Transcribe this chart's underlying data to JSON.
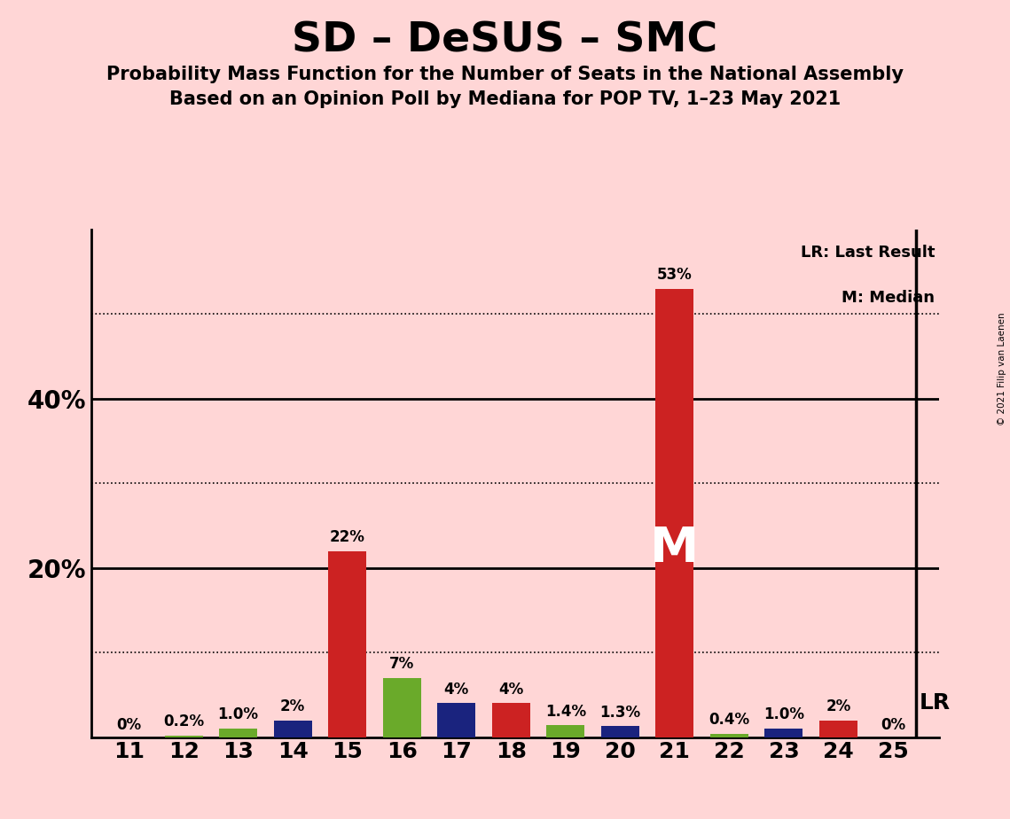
{
  "title": "SD – DeSUS – SMC",
  "subtitle1": "Probability Mass Function for the Number of Seats in the National Assembly",
  "subtitle2": "Based on an Opinion Poll by Mediana for POP TV, 1–23 May 2021",
  "copyright": "© 2021 Filip van Laenen",
  "seats": [
    11,
    12,
    13,
    14,
    15,
    16,
    17,
    18,
    19,
    20,
    21,
    22,
    23,
    24,
    25
  ],
  "values": [
    0.0,
    0.2,
    1.0,
    2.0,
    22.0,
    7.0,
    4.0,
    4.0,
    1.4,
    1.3,
    53.0,
    0.4,
    1.0,
    2.0,
    0.0
  ],
  "labels": [
    "0%",
    "0.2%",
    "1.0%",
    "2%",
    "22%",
    "7%",
    "4%",
    "4%",
    "1.4%",
    "1.3%",
    "53%",
    "0.4%",
    "1.0%",
    "2%",
    "0%"
  ],
  "colors": [
    "#cc2222",
    "#6aaa2a",
    "#6aaa2a",
    "#1a237e",
    "#cc2222",
    "#6aaa2a",
    "#1a237e",
    "#cc2222",
    "#6aaa2a",
    "#1a237e",
    "#cc2222",
    "#6aaa2a",
    "#1a237e",
    "#cc2222",
    "#1a237e"
  ],
  "median_seat": 21,
  "lr_seat": 25,
  "background_color": "#ffd6d6",
  "ylim": [
    0,
    60
  ],
  "dotted_yticks": [
    10,
    30,
    50
  ],
  "solid_yticks": [
    20,
    40
  ]
}
